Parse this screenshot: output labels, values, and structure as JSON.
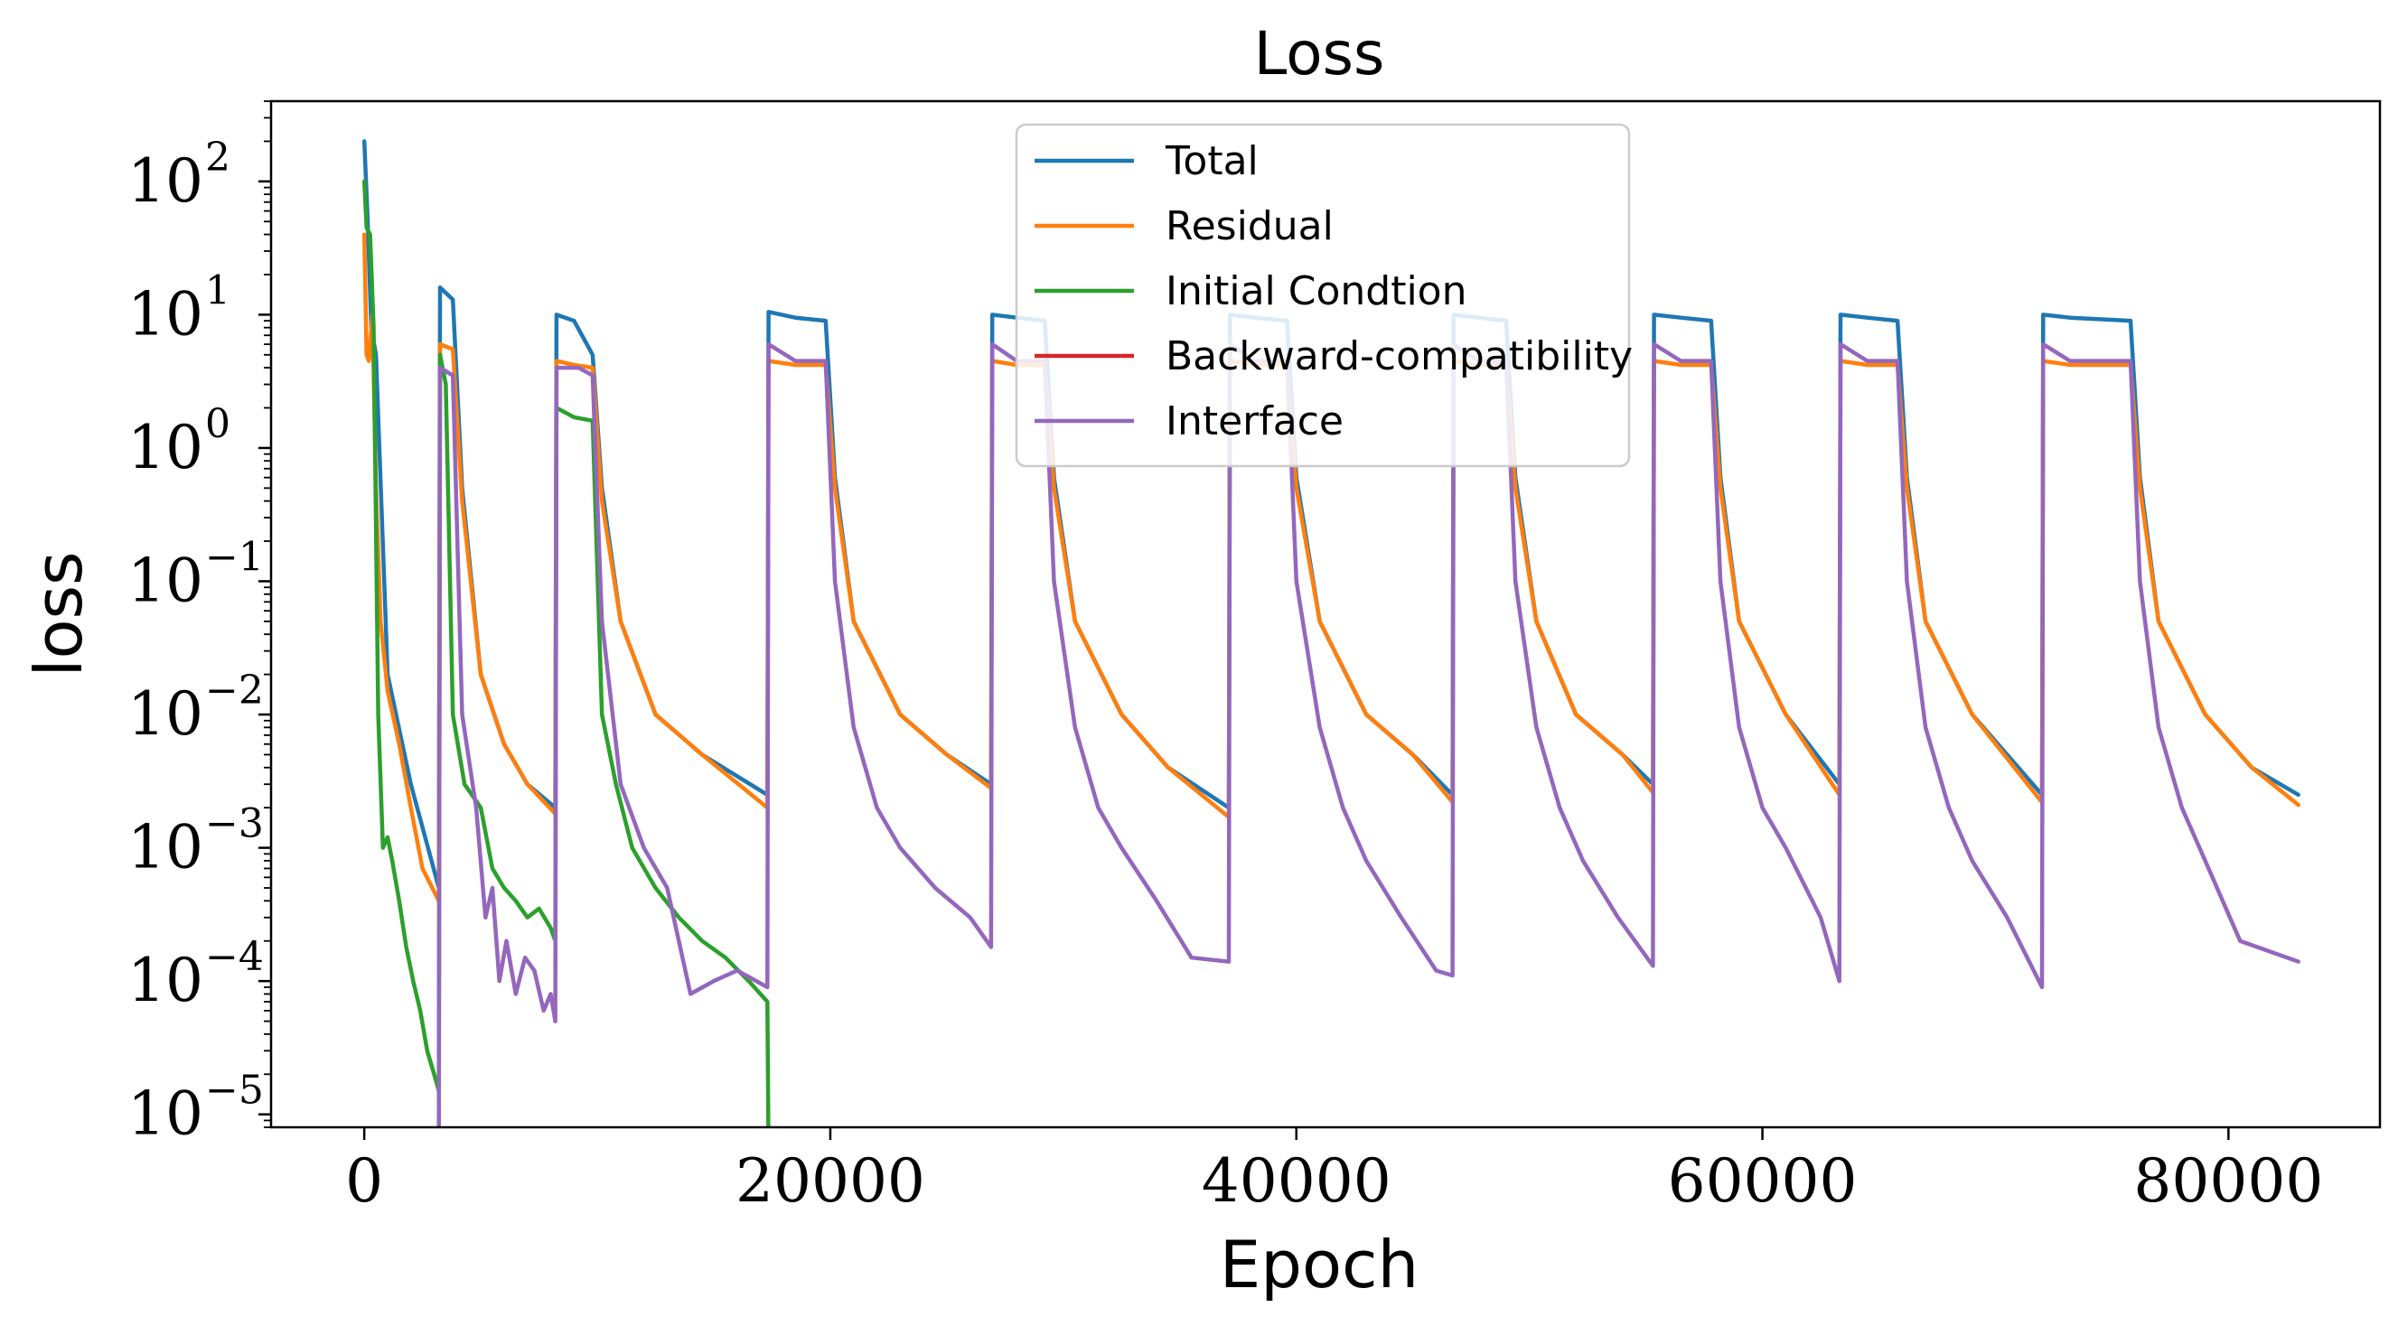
{
  "chart_data": {
    "type": "line",
    "title": "Loss",
    "xlabel": "Epoch",
    "ylabel": "loss",
    "yscale": "log",
    "xlim": [
      -4000,
      86500
    ],
    "ylim": [
      8e-06,
      400
    ],
    "x_ticks": [
      0,
      20000,
      40000,
      60000,
      80000
    ],
    "y_ticks": [
      {
        "value": 1e-05,
        "base": "10",
        "exp": "−5"
      },
      {
        "value": 0.0001,
        "base": "10",
        "exp": "−4"
      },
      {
        "value": 0.001,
        "base": "10",
        "exp": "−3"
      },
      {
        "value": 0.01,
        "base": "10",
        "exp": "−2"
      },
      {
        "value": 0.1,
        "base": "10",
        "exp": "−1"
      },
      {
        "value": 1,
        "base": "10",
        "exp": "0"
      },
      {
        "value": 10,
        "base": "10",
        "exp": "1"
      },
      {
        "value": 100,
        "base": "10",
        "exp": "2"
      }
    ],
    "grid": false,
    "legend_position": "upper-center",
    "series": [
      {
        "name": "Total",
        "color": "#1f77b4",
        "x": [
          0,
          150,
          300,
          500,
          1000,
          2000,
          3200,
          3250,
          3800,
          4200,
          5000,
          6000,
          7000,
          8200,
          8250,
          9000,
          9800,
          10200,
          11000,
          12500,
          14500,
          17300,
          17350,
          18500,
          19800,
          20200,
          21000,
          23000,
          25000,
          26900,
          26950,
          28000,
          29200,
          29600,
          30500,
          32500,
          34500,
          37100,
          37150,
          38200,
          39600,
          40000,
          41000,
          43000,
          45000,
          46700,
          46750,
          47800,
          49000,
          49400,
          50300,
          52000,
          54000,
          55300,
          55350,
          56500,
          57800,
          58200,
          59000,
          61000,
          63300,
          63350,
          64500,
          65800,
          66200,
          67000,
          69000,
          72000,
          72050,
          73200,
          75800,
          76200,
          77000,
          79000,
          81000,
          83000
        ],
        "y": [
          200,
          50,
          8,
          5,
          0.02,
          0.003,
          0.0005,
          16,
          13,
          0.5,
          0.02,
          0.006,
          0.003,
          0.002,
          10,
          9,
          5,
          0.5,
          0.05,
          0.01,
          0.005,
          0.0025,
          10.5,
          9.5,
          9,
          0.6,
          0.05,
          0.01,
          0.005,
          0.003,
          10,
          9.5,
          9,
          0.6,
          0.05,
          0.01,
          0.004,
          0.002,
          10,
          9.5,
          9,
          0.6,
          0.05,
          0.01,
          0.005,
          0.0025,
          10,
          9.5,
          9,
          0.6,
          0.05,
          0.01,
          0.005,
          0.003,
          10,
          9.5,
          9,
          0.6,
          0.05,
          0.01,
          0.003,
          10,
          9.5,
          9,
          0.6,
          0.05,
          0.01,
          0.0025,
          10,
          9.5,
          9,
          0.6,
          0.05,
          0.01,
          0.004,
          0.0025
        ]
      },
      {
        "name": "Residual",
        "color": "#ff7f0e",
        "x": [
          0,
          100,
          200,
          350,
          500,
          700,
          1000,
          1500,
          2000,
          2500,
          3200,
          3250,
          3800,
          4200,
          5000,
          6000,
          7000,
          8200,
          8250,
          9000,
          9800,
          10200,
          11000,
          12500,
          14500,
          17300,
          17350,
          18500,
          19800,
          20200,
          21000,
          23000,
          25000,
          26900,
          26950,
          28000,
          29200,
          29600,
          30500,
          32500,
          34500,
          37100,
          37150,
          38200,
          39600,
          40000,
          41000,
          43000,
          45000,
          46700,
          46750,
          47800,
          49000,
          49400,
          50300,
          52000,
          54000,
          55300,
          55350,
          56500,
          57800,
          58200,
          59000,
          61000,
          63300,
          63350,
          64500,
          65800,
          66200,
          67000,
          69000,
          72000,
          72050,
          73200,
          75800,
          76200,
          77000,
          79000,
          81000,
          83000
        ],
        "y": [
          40,
          5,
          4.5,
          10,
          0.5,
          0.05,
          0.015,
          0.006,
          0.002,
          0.0007,
          0.0004,
          6,
          5.5,
          0.4,
          0.02,
          0.006,
          0.003,
          0.0018,
          4.5,
          4.2,
          4,
          0.4,
          0.05,
          0.01,
          0.005,
          0.002,
          4.5,
          4.2,
          4.2,
          0.5,
          0.05,
          0.01,
          0.005,
          0.0028,
          4.5,
          4.2,
          4.2,
          0.5,
          0.05,
          0.01,
          0.004,
          0.0017,
          4.5,
          4.2,
          4.2,
          0.5,
          0.05,
          0.01,
          0.005,
          0.0022,
          4.5,
          4.2,
          4.2,
          0.5,
          0.05,
          0.01,
          0.005,
          0.0026,
          4.5,
          4.2,
          4.2,
          0.5,
          0.05,
          0.01,
          0.0025,
          4.5,
          4.2,
          4.2,
          0.5,
          0.05,
          0.01,
          0.0022,
          4.5,
          4.2,
          4.2,
          0.5,
          0.05,
          0.01,
          0.004,
          0.0021
        ]
      },
      {
        "name": "Initial Condtion",
        "color": "#2ca02c",
        "x": [
          0,
          100,
          250,
          400,
          600,
          800,
          1000,
          1200,
          1500,
          1800,
          2100,
          2400,
          2700,
          3000,
          3200,
          3250,
          3500,
          3800,
          4300,
          5000,
          5500,
          6000,
          6500,
          7000,
          7500,
          8000,
          8200,
          8250,
          9000,
          9800,
          10200,
          10800,
          11500,
          12500,
          13500,
          14500,
          15500,
          16500,
          17300,
          17350
        ],
        "y": [
          100,
          45,
          40,
          8,
          0.01,
          0.001,
          0.0012,
          0.0008,
          0.0004,
          0.00018,
          0.0001,
          6e-05,
          3e-05,
          2e-05,
          1.5e-05,
          5,
          3,
          0.01,
          0.003,
          0.002,
          0.0007,
          0.0005,
          0.0004,
          0.0003,
          0.00035,
          0.00025,
          0.0002,
          2,
          1.7,
          1.6,
          0.01,
          0.003,
          0.001,
          0.0005,
          0.0003,
          0.0002,
          0.00015,
          0.0001,
          7e-05,
          5e-06
        ]
      },
      {
        "name": "Backward-compatibility",
        "color": "#d62728",
        "x": [],
        "y": []
      },
      {
        "name": "Interface",
        "color": "#9467bd",
        "x": [
          3200,
          3250,
          3800,
          4200,
          4800,
          5200,
          5500,
          5800,
          6100,
          6500,
          6900,
          7300,
          7700,
          8000,
          8200,
          8250,
          9200,
          9800,
          10200,
          11000,
          12000,
          13000,
          13500,
          14000,
          15000,
          16000,
          17300,
          17350,
          18500,
          19800,
          20200,
          21000,
          22000,
          23000,
          24500,
          26000,
          26900,
          26950,
          28000,
          29200,
          29600,
          30500,
          31500,
          32500,
          34000,
          35500,
          37100,
          37150,
          38200,
          39600,
          40000,
          41000,
          42000,
          43000,
          44500,
          46000,
          46700,
          46750,
          47800,
          49000,
          49400,
          50300,
          51300,
          52300,
          53800,
          55300,
          55350,
          56500,
          57800,
          58200,
          59000,
          60000,
          61000,
          62500,
          63300,
          63350,
          64500,
          65800,
          66200,
          67000,
          68000,
          69000,
          70500,
          72000,
          72050,
          73200,
          75800,
          76200,
          77000,
          78000,
          79000,
          80500,
          83000
        ],
        "y": [
          7e-06,
          4,
          3.5,
          0.01,
          0.002,
          0.0003,
          0.0005,
          0.0001,
          0.0002,
          8e-05,
          0.00015,
          0.00012,
          6e-05,
          8e-05,
          5e-05,
          4,
          4,
          3.5,
          0.05,
          0.003,
          0.001,
          0.0005,
          0.0002,
          8e-05,
          0.0001,
          0.00012,
          9e-05,
          6,
          4.5,
          4.5,
          0.1,
          0.008,
          0.002,
          0.001,
          0.0005,
          0.0003,
          0.00018,
          6,
          4.5,
          4.5,
          0.1,
          0.008,
          0.002,
          0.001,
          0.0004,
          0.00015,
          0.00014,
          6,
          4.5,
          4.5,
          0.1,
          0.008,
          0.002,
          0.0008,
          0.0003,
          0.00012,
          0.00011,
          6,
          4.5,
          4.5,
          0.1,
          0.008,
          0.002,
          0.0008,
          0.0003,
          0.00013,
          6,
          4.5,
          4.5,
          0.1,
          0.008,
          0.002,
          0.001,
          0.0003,
          0.0001,
          6,
          4.5,
          4.5,
          0.1,
          0.008,
          0.002,
          0.0008,
          0.0003,
          9e-05,
          6,
          4.5,
          4.5,
          0.1,
          0.008,
          0.002,
          0.0008,
          0.0002,
          0.00014
        ]
      }
    ]
  }
}
